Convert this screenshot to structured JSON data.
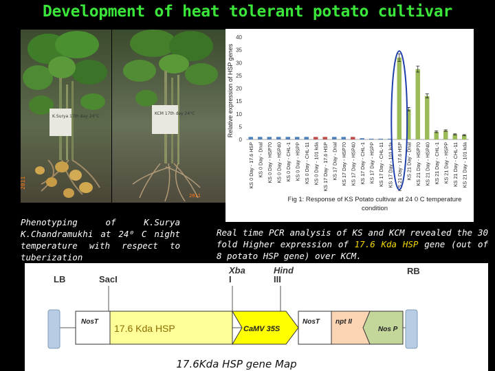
{
  "title": "Development of heat tolerant potato cultivar",
  "photos": {
    "left_label": "K.Surya 17th day 24°C",
    "right_label": "KCM 17th day 24°C",
    "left_date": "2011",
    "right_date": "2011"
  },
  "chart_data": {
    "type": "bar",
    "ylabel": "Relative expression of HSP genes",
    "ylim": [
      0,
      40
    ],
    "yticks": [
      0,
      5,
      10,
      15,
      20,
      25,
      30,
      35,
      40
    ],
    "categories": [
      "KS 0 Day - 17.6 HSP",
      "KS 0 Day - Dnal",
      "KS 0 Day - HSP70",
      "KS 0 Day - HSP40",
      "KS 0 Day - CHL-1",
      "KS 0 Day - HSPP",
      "KS 0 Day - CHL-11",
      "KS 0 Day - 101 kda",
      "KS 17 Day - 17.6 HSP",
      "KS 17 Day - Dnal",
      "KS 17 Day - HSP70",
      "KS 17 Day - HSP40",
      "KS 17 Day - CHL-1",
      "KS 17 Day - HSPP",
      "KS 17 Day - CHL-11",
      "KS 17 Day - 101 kda",
      "KS 21 Day - 17.6 HSP",
      "KS 21 Day - Dnal",
      "KS 21 Day - HSP70",
      "KS 21 Day - HSP40",
      "KS 21 Day - CHL-1",
      "KS 21 Day - HSPP",
      "KS 21 Day - CHL-11",
      "KS 21 Day - 101 kda"
    ],
    "values": [
      1,
      1,
      1,
      1,
      1,
      1,
      1,
      1,
      1,
      1,
      1,
      1,
      0.5,
      0.3,
      0.3,
      0.3,
      32,
      11.8,
      27.5,
      17,
      3,
      3.5,
      2,
      1.7
    ],
    "errors": [
      0,
      0,
      0,
      0,
      0,
      0,
      0,
      0,
      0,
      0,
      0,
      0,
      0,
      0,
      0,
      0,
      1.5,
      0.7,
      1.2,
      0.8,
      0.3,
      0.3,
      0.2,
      0.2
    ],
    "colors": [
      "#4f81bd",
      "#4f81bd",
      "#4f81bd",
      "#4f81bd",
      "#4f81bd",
      "#4f81bd",
      "#4f81bd",
      "#c0504d",
      "#c0504d",
      "#4f81bd",
      "#4f81bd",
      "#c0504d",
      "#4f81bd",
      "#4f81bd",
      "#4f81bd",
      "#4f81bd",
      "#9bbb59",
      "#9bbb59",
      "#9bbb59",
      "#9bbb59",
      "#9bbb59",
      "#9bbb59",
      "#9bbb59",
      "#9bbb59"
    ],
    "highlight_index": 16,
    "caption": "Fig 1: Response of KS Potato cultivar at 24 0 C temperature condition"
  },
  "caption_left": {
    "text": "Phenotyping of K.Surya K.Chandramukhi at 24⁰ C night temperature with respect to tuberization"
  },
  "caption_right": {
    "part1": "Real time PCR analysis of KS and KCM revealed the 30 fold Higher expression of ",
    "highlight": "17.6 Kda HSP",
    "part2": " gene (out of 8 potato HSP gene) over KCM."
  },
  "gene_map": {
    "lb": "LB",
    "rb": "RB",
    "sac1": "SacI",
    "xba1_line1": "Xba",
    "xba1_line2": "I",
    "hind3_line1": "Hind",
    "hind3_line2": "III",
    "nost1": "NosT",
    "hsp": "17.6 Kda HSP",
    "camv": "CaMV 35S",
    "nost2": "NosT",
    "nptii": "npt II",
    "nosp": "Nos P",
    "map_title": "17.6Kda HSP gene Map",
    "colors": {
      "hsp_fill": "#ffff99",
      "camv_fill": "#ffff00",
      "nptii_fill": "#fbd4b4",
      "nosp_fill": "#c4d79b",
      "border_fill": "#b8cce4",
      "hsp_text": "#8a6d00"
    }
  }
}
